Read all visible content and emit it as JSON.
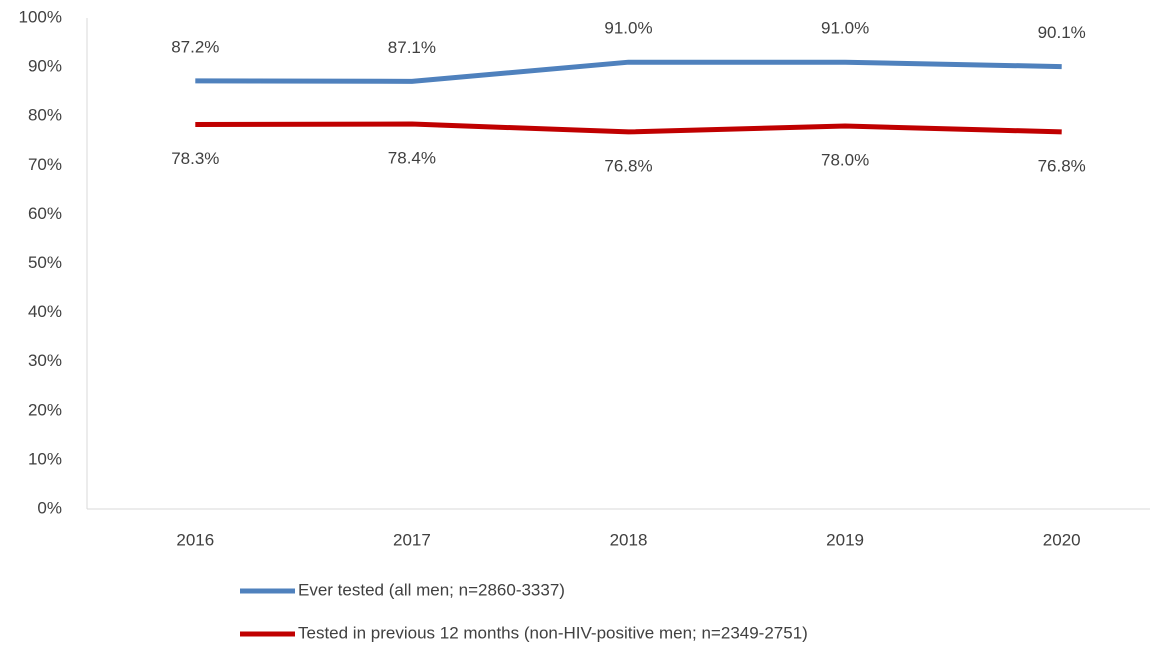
{
  "chart_data": {
    "type": "line",
    "categories": [
      "2016",
      "2017",
      "2018",
      "2019",
      "2020"
    ],
    "series": [
      {
        "name": "Ever tested (all men; n=2860-3337)",
        "color": "#4f81bd",
        "values": [
          87.2,
          87.1,
          91.0,
          91.0,
          90.1
        ],
        "value_labels": [
          "87.2%",
          "87.1%",
          "91.0%",
          "91.0%",
          "90.1%"
        ]
      },
      {
        "name": "Tested in previous 12 months (non-HIV-positive men; n=2349-2751)",
        "color": "#c00000",
        "values": [
          78.3,
          78.4,
          76.8,
          78.0,
          76.8
        ],
        "value_labels": [
          "78.3%",
          "78.4%",
          "76.8%",
          "78.0%",
          "76.8%"
        ]
      }
    ],
    "ylim": [
      0,
      100
    ],
    "yticks": [
      {
        "value": 0,
        "label": "0%"
      },
      {
        "value": 10,
        "label": "10%"
      },
      {
        "value": 20,
        "label": "20%"
      },
      {
        "value": 30,
        "label": "30%"
      },
      {
        "value": 40,
        "label": "40%"
      },
      {
        "value": 50,
        "label": "50%"
      },
      {
        "value": 60,
        "label": "60%"
      },
      {
        "value": 70,
        "label": "70%"
      },
      {
        "value": 80,
        "label": "80%"
      },
      {
        "value": 90,
        "label": "90%"
      },
      {
        "value": 100,
        "label": "100%"
      }
    ],
    "grid": false,
    "legend": "bottom"
  }
}
